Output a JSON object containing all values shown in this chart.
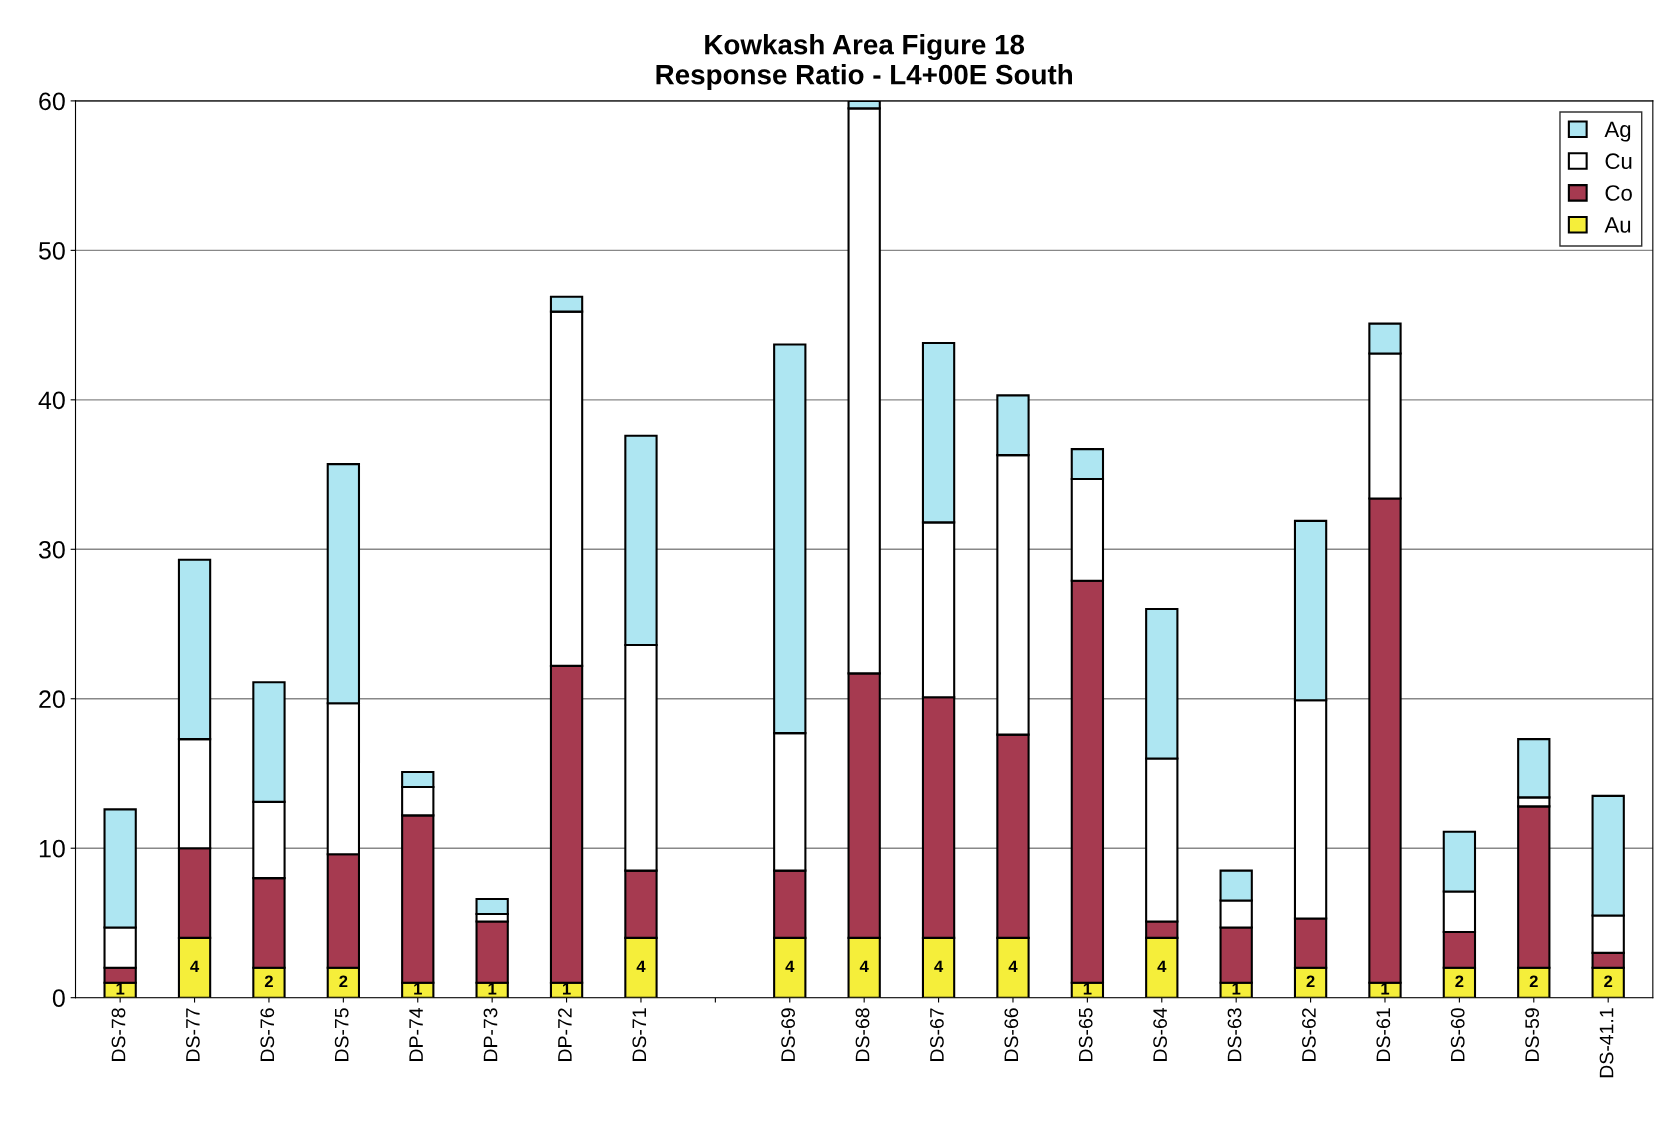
{
  "chart_data": {
    "type": "bar",
    "stacked": true,
    "title": "Kowkash Area Figure 18\nResponse Ratio - L4+00E South",
    "categories": [
      "DS-78",
      "DS-77",
      "DS-76",
      "DS-75",
      "DP-74",
      "DP-73",
      "DP-72",
      "DS-71",
      null,
      "DS-69",
      "DS-68",
      "DS-67",
      "DS-66",
      "DS-65",
      "DS-64",
      "DS-63",
      "DS-62",
      "DS-61",
      "DS-60",
      "DS-59",
      "DS-41.1"
    ],
    "series": [
      {
        "name": "Au",
        "color": "#f5ee3a",
        "values": [
          1,
          4,
          2,
          2,
          1,
          1,
          1,
          4,
          null,
          4,
          4,
          4,
          4,
          1,
          4,
          1,
          2,
          1,
          2,
          2,
          2
        ],
        "value_labels": [
          "1",
          "4",
          "2",
          "2",
          "1",
          "1",
          "1",
          "4",
          null,
          "4",
          "4",
          "4",
          "4",
          "1",
          "4",
          "1",
          "2",
          "1",
          "2",
          "2",
          "2"
        ]
      },
      {
        "name": "Co",
        "color": "#a63a50",
        "values": [
          1,
          6,
          6,
          7.6,
          11.2,
          4.1,
          21.2,
          4.5,
          null,
          4.5,
          17.7,
          16.1,
          13.6,
          26.9,
          1.1,
          3.7,
          3.3,
          32.4,
          2.4,
          10.8,
          1
        ]
      },
      {
        "name": "Cu",
        "color": "#ffffff",
        "values": [
          2.7,
          7.3,
          5.1,
          10.1,
          1.9,
          0.5,
          23.7,
          15.1,
          null,
          9.2,
          37.8,
          11.7,
          18.7,
          6.8,
          10.9,
          1.8,
          14.6,
          9.7,
          2.7,
          0.6,
          2.5
        ]
      },
      {
        "name": "Ag",
        "color": "#aee6f2",
        "values": [
          7.9,
          12,
          8,
          16,
          1,
          1,
          1,
          14,
          null,
          26,
          0.5,
          12,
          4,
          2,
          10,
          2,
          12,
          2,
          4,
          3.9,
          8
        ]
      }
    ],
    "ylim": [
      0,
      60
    ],
    "yticks": [
      0,
      10,
      20,
      30,
      40,
      50,
      60
    ],
    "grid": "y",
    "legend": "top right"
  }
}
